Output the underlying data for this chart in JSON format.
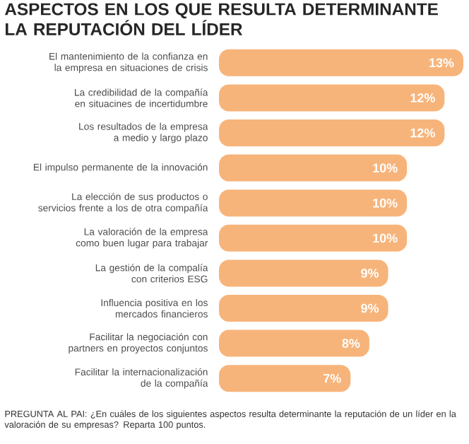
{
  "chart_data": {
    "type": "bar",
    "orientation": "horizontal",
    "title": "ASPECTOS EN LOS QUE RESULTA DETERMINANTE LA REPUTACIÓN DEL LÍDER",
    "categories": [
      "El mantenimiento de la confianza en la empresa en situaciones de crisis",
      "La credibilidad de la compañía en situacines de incertidumbre",
      "Los resultados de la empresa a medio y largo plazo",
      "El impulso permanente de la innovación",
      "La elección de sus productos o servicios frente a los de otra compañía",
      "La valoración de la empresa como buen lugar para trabajar",
      "La gestión de la compalía con criterios ESG",
      "Influencia positiva en los mercados financieros",
      "Facilitar la negociación con partners en proyectos conjuntos",
      "Facilitar la internacionalización de la compañía"
    ],
    "values": [
      13,
      12,
      12,
      10,
      10,
      10,
      9,
      9,
      8,
      7
    ],
    "value_labels": [
      "13%",
      "12%",
      "12%",
      "10%",
      "10%",
      "10%",
      "9%",
      "9%",
      "8%",
      "7%"
    ],
    "color": "#f7b47a",
    "annotations": [
      "PREGUNTA AL PAI: ¿En cuáles de los siguientes aspectos resulta determinante la reputación de un líder en la valoración de su empresas? Reparta 100 puntos."
    ]
  }
}
